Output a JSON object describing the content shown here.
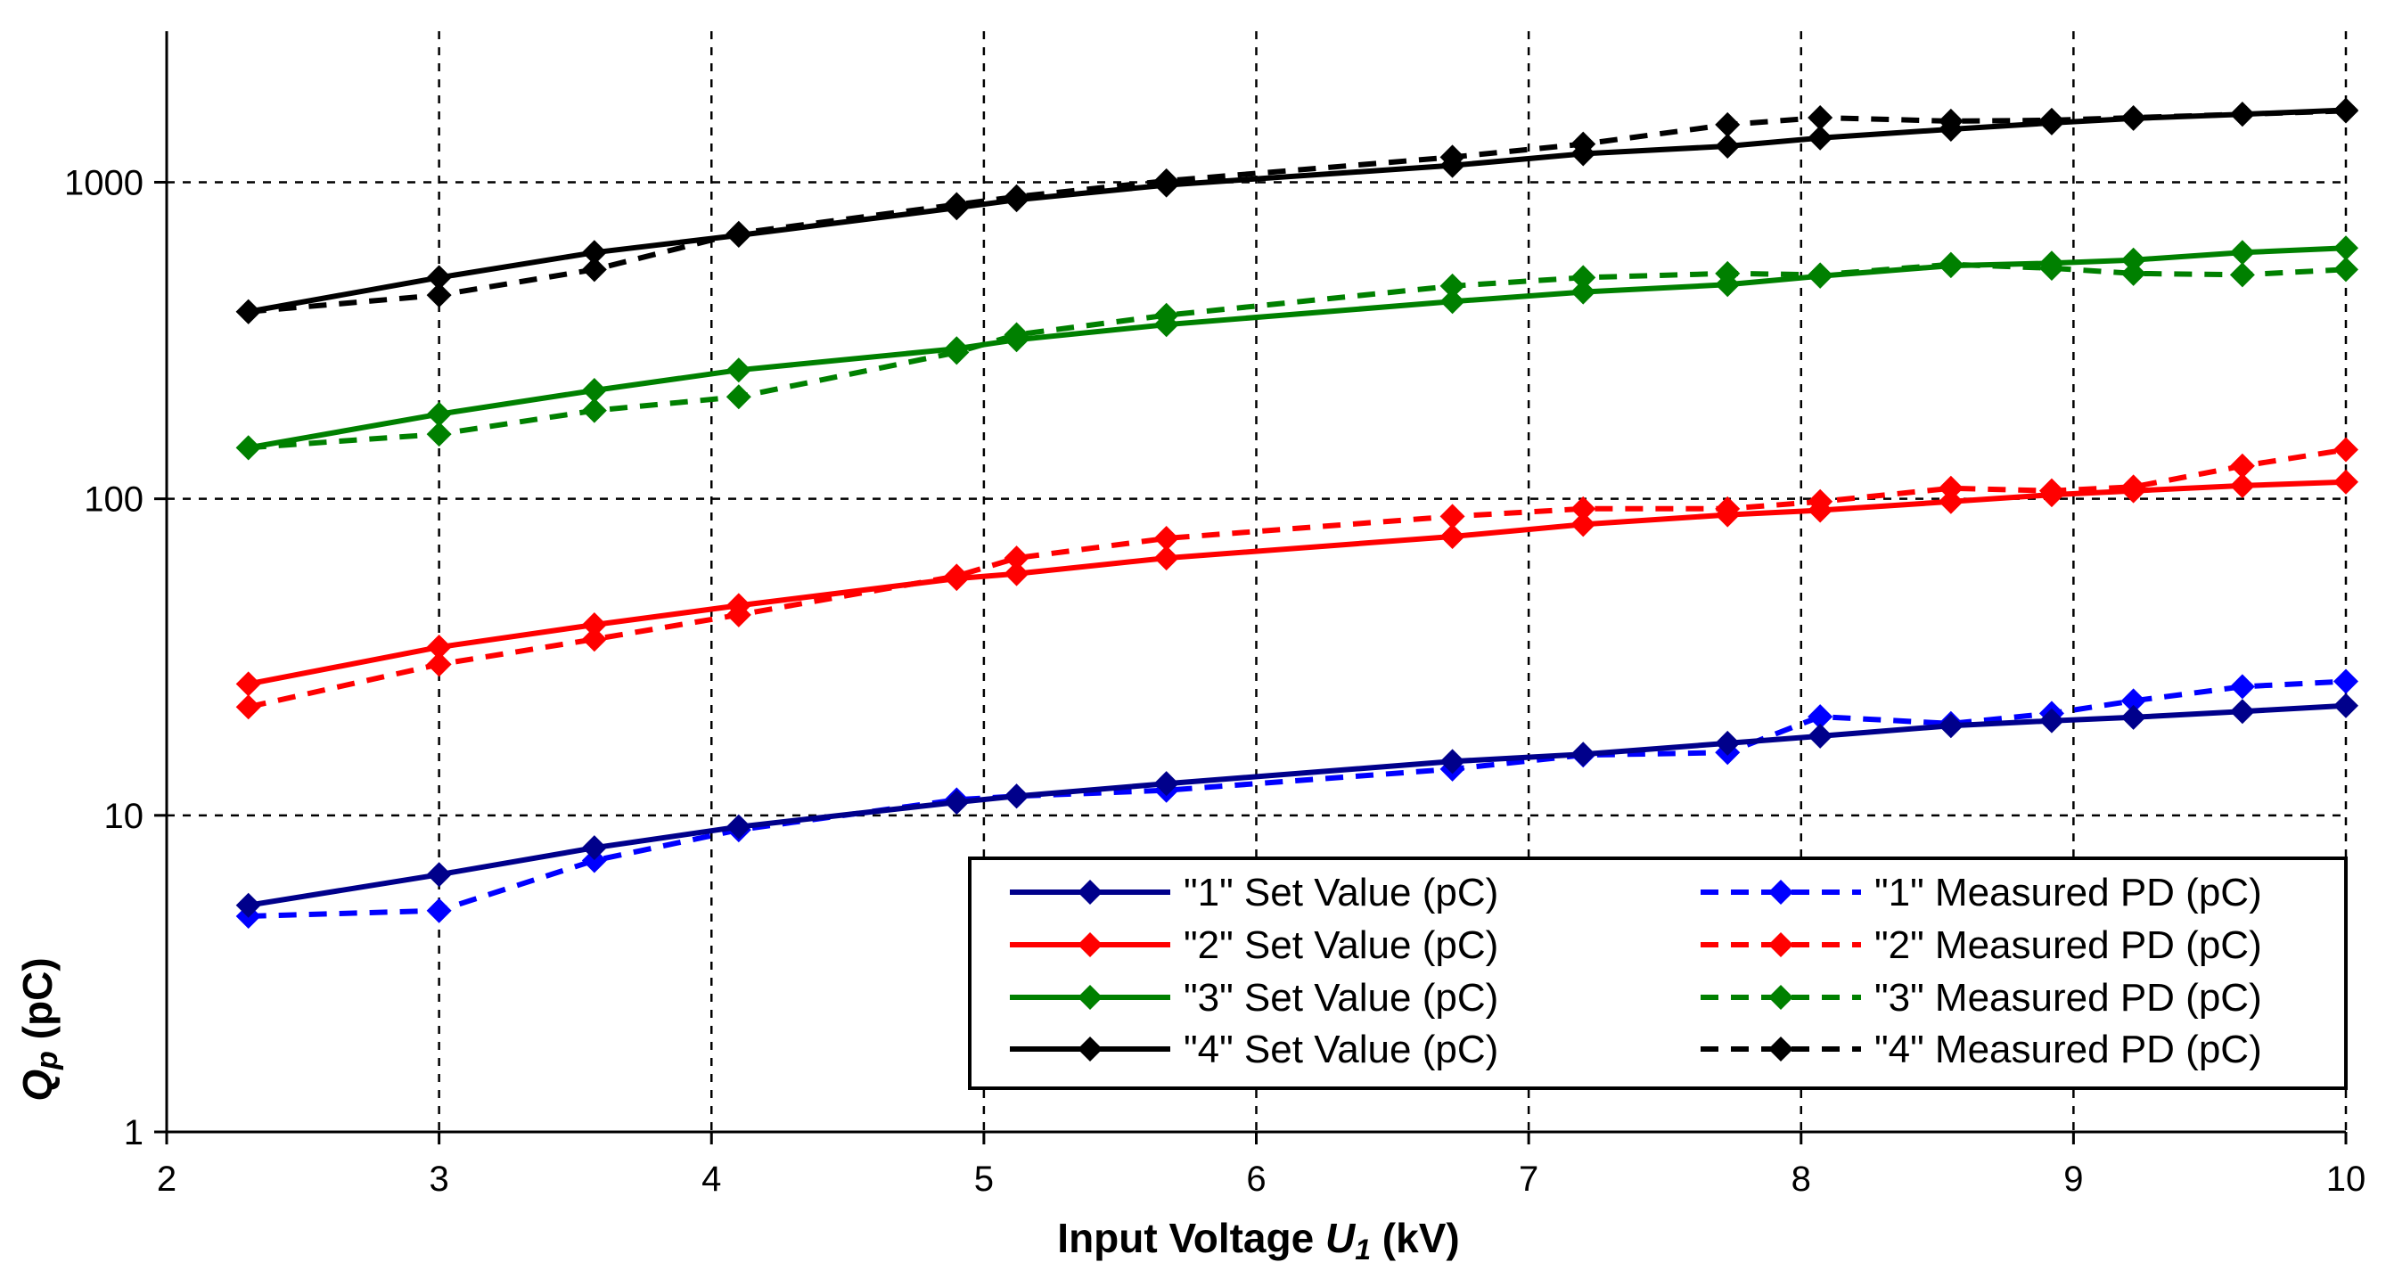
{
  "chart_data": {
    "type": "line",
    "title": "",
    "xlabel": "Input Voltage U1 (kV)",
    "xlabel_parts": {
      "main": "Input Voltage ",
      "var": "U",
      "sub": "1",
      "unit": " (kV)"
    },
    "ylabel": "Qp (pC)",
    "ylabel_parts": {
      "var": "Q",
      "sub": "p",
      "unit": " (pC)"
    },
    "xlim": [
      2,
      10
    ],
    "ylim": [
      1,
      3000
    ],
    "yscale": "log",
    "xticks": [
      "2",
      "3",
      "4",
      "5",
      "6",
      "7",
      "8",
      "9",
      "10"
    ],
    "yticks": [
      "1",
      "10",
      "100",
      "1000"
    ],
    "grid": true,
    "legend_position": "bottom-right",
    "series": [
      {
        "name": "\"1\" Set Value (pC)",
        "color": "#00008b",
        "dash": "solid",
        "x": [
          2.3,
          3.0,
          3.57,
          4.1,
          4.9,
          5.12,
          5.67,
          6.72,
          7.2,
          7.73,
          8.07,
          8.55,
          8.92,
          9.22,
          9.62,
          10.0
        ],
        "y": [
          5.2,
          6.5,
          7.9,
          9.2,
          11.0,
          11.5,
          12.6,
          14.8,
          15.6,
          16.9,
          17.8,
          19.2,
          19.9,
          20.4,
          21.3,
          22.2
        ]
      },
      {
        "name": "\"1\" Measured PD (pC)",
        "color": "#0000ff",
        "dash": "dashed",
        "x": [
          2.3,
          3.0,
          3.57,
          4.1,
          4.9,
          5.12,
          5.67,
          6.72,
          7.2,
          7.73,
          8.07,
          8.55,
          8.92,
          9.22,
          9.62,
          10.0
        ],
        "y": [
          4.8,
          5.0,
          7.2,
          9.0,
          11.2,
          11.5,
          12.0,
          14.0,
          15.5,
          15.8,
          20.5,
          19.5,
          21.0,
          23.0,
          25.5,
          26.5
        ]
      },
      {
        "name": "\"2\" Set Value (pC)",
        "color": "#ff0000",
        "dash": "solid",
        "x": [
          2.3,
          3.0,
          3.57,
          4.1,
          4.9,
          5.12,
          5.67,
          6.72,
          7.2,
          7.73,
          8.07,
          8.55,
          8.92,
          9.22,
          9.62,
          10.0
        ],
        "y": [
          26.0,
          34.0,
          40.0,
          46.0,
          56.0,
          58.0,
          65.0,
          76.0,
          83.0,
          89.0,
          92.0,
          98.0,
          103.0,
          106.0,
          110.0,
          113.0
        ]
      },
      {
        "name": "\"2\" Measured PD (pC)",
        "color": "#ff0000",
        "dash": "dashed",
        "x": [
          2.3,
          3.0,
          3.57,
          4.1,
          4.9,
          5.12,
          5.67,
          6.72,
          7.2,
          7.73,
          8.07,
          8.55,
          8.92,
          9.22,
          9.62,
          10.0
        ],
        "y": [
          22.0,
          30.0,
          36.0,
          43.0,
          57.0,
          65.0,
          75.0,
          88.0,
          93.0,
          93.0,
          98.0,
          108.0,
          106.0,
          109.0,
          127.0,
          143.0
        ]
      },
      {
        "name": "\"3\" Set Value (pC)",
        "color": "#008000",
        "dash": "solid",
        "x": [
          2.3,
          3.0,
          3.57,
          4.1,
          4.9,
          5.12,
          5.67,
          6.72,
          7.2,
          7.73,
          8.07,
          8.55,
          8.92,
          9.22,
          9.62,
          10.0
        ],
        "y": [
          145.0,
          185.0,
          220.0,
          255.0,
          298.0,
          318.0,
          355.0,
          420.0,
          450.0,
          475.0,
          505.0,
          545.0,
          555.0,
          568.0,
          600.0,
          620.0
        ]
      },
      {
        "name": "\"3\" Measured PD (pC)",
        "color": "#008000",
        "dash": "dashed",
        "x": [
          2.3,
          3.0,
          3.57,
          4.1,
          4.9,
          5.12,
          5.67,
          6.72,
          7.2,
          7.73,
          8.07,
          8.55,
          8.92,
          9.22,
          9.62,
          10.0
        ],
        "y": [
          145.0,
          160.0,
          190.0,
          210.0,
          290.0,
          330.0,
          380.0,
          470.0,
          500.0,
          515.0,
          510.0,
          550.0,
          535.0,
          515.0,
          510.0,
          530.0
        ]
      },
      {
        "name": "\"4\" Set Value (pC)",
        "color": "#000000",
        "dash": "solid",
        "x": [
          2.3,
          3.0,
          3.57,
          4.1,
          4.9,
          5.12,
          5.67,
          6.72,
          7.2,
          7.73,
          8.07,
          8.55,
          8.92,
          9.22,
          9.62,
          10.0
        ],
        "y": [
          390.0,
          500.0,
          600.0,
          680.0,
          830.0,
          880.0,
          980.0,
          1130.0,
          1230.0,
          1300.0,
          1380.0,
          1470.0,
          1540.0,
          1590.0,
          1640.0,
          1690.0
        ]
      },
      {
        "name": "\"4\" Measured PD (pC)",
        "color": "#000000",
        "dash": "dashed",
        "x": [
          2.3,
          3.0,
          3.57,
          4.1,
          4.9,
          5.12,
          5.67,
          6.72,
          7.2,
          7.73,
          8.07,
          8.55,
          8.92,
          9.22,
          9.62,
          10.0
        ],
        "y": [
          390.0,
          440.0,
          530.0,
          690.0,
          850.0,
          900.0,
          1010.0,
          1200.0,
          1320.0,
          1520.0,
          1600.0,
          1560.0,
          1570.0,
          1600.0,
          1640.0,
          1680.0
        ]
      }
    ]
  }
}
